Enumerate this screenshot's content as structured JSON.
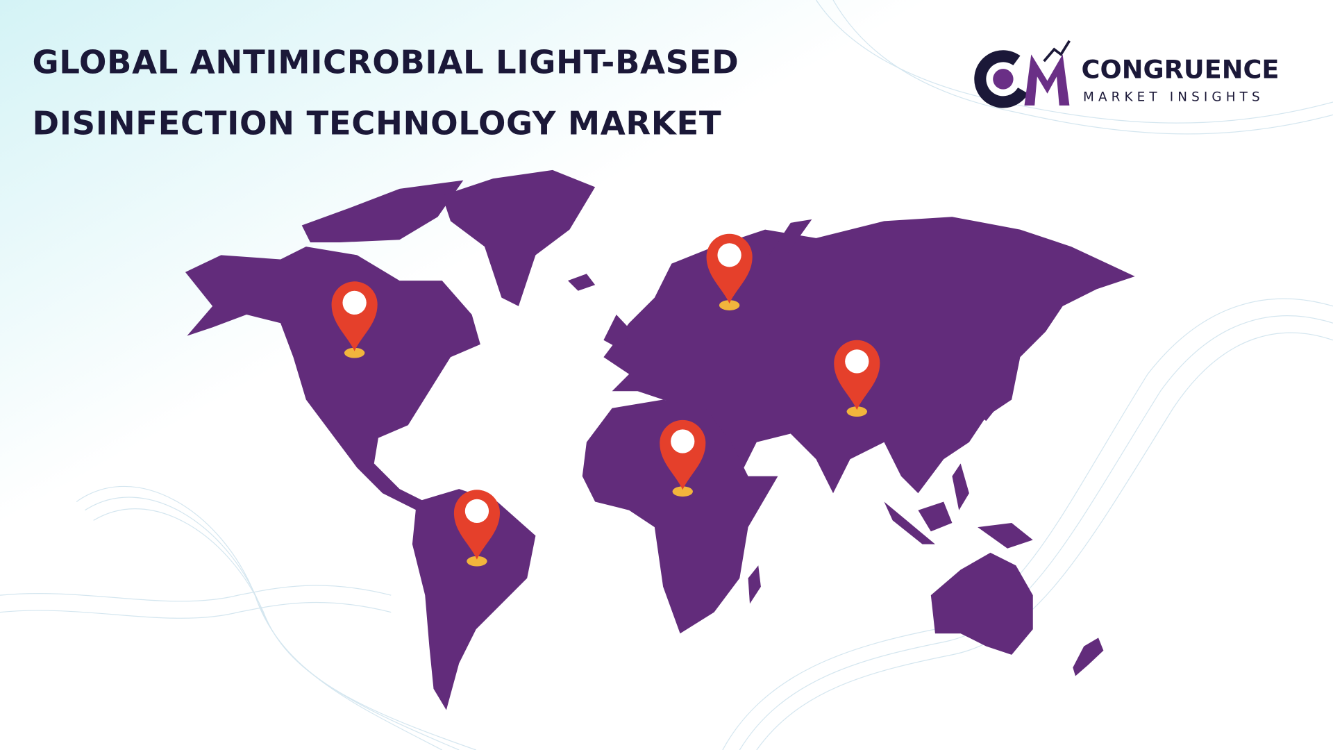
{
  "header": {
    "title_lines": [
      "GLOBAL ANTIMICROBIAL LIGHT-BASED",
      "DISINFECTION TECHNOLOGY MARKET"
    ]
  },
  "logo": {
    "name": "CONGRUENCE",
    "tagline": "MARKET INSIGHTS"
  }
}
